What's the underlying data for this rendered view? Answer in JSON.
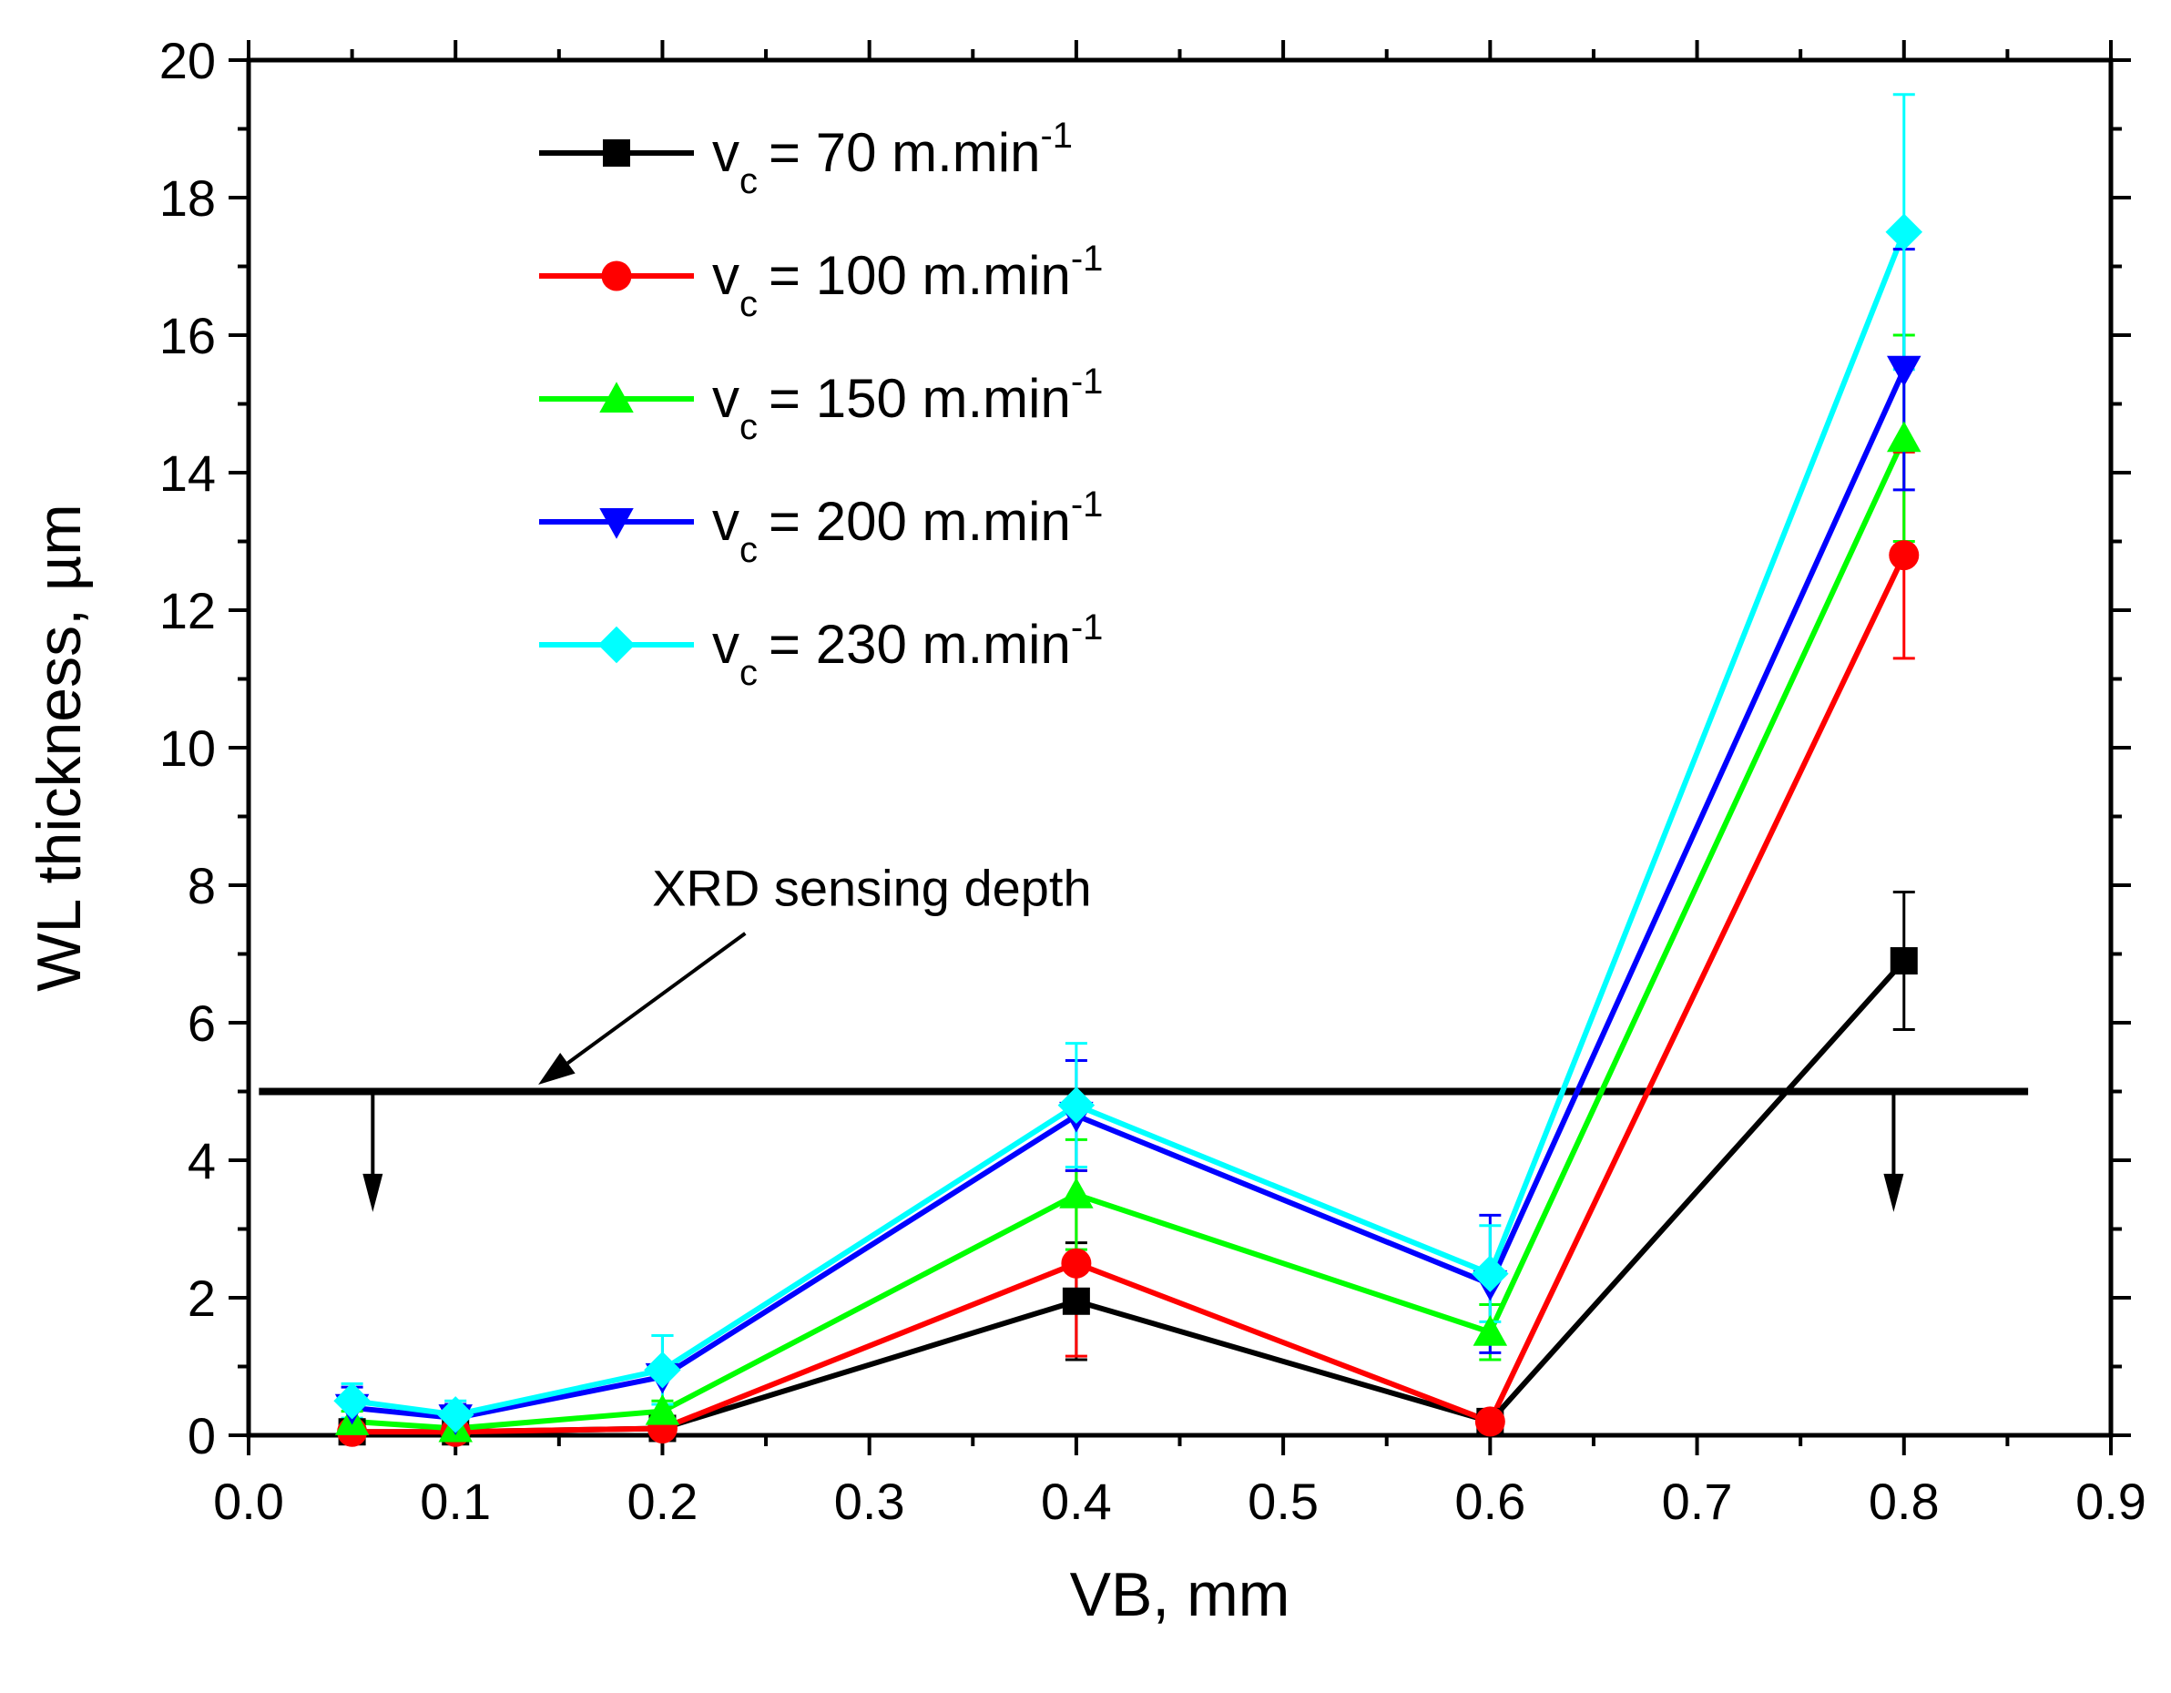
{
  "chart_data": {
    "type": "line",
    "title": "",
    "xlabel": "VB, mm",
    "ylabel": "WL thickness, µm",
    "xlim": [
      0.0,
      0.9
    ],
    "ylim": [
      0,
      20
    ],
    "x_ticks": [
      "0.0",
      "0.1",
      "0.2",
      "0.3",
      "0.4",
      "0.5",
      "0.6",
      "0.7",
      "0.8",
      "0.9"
    ],
    "y_ticks": [
      "0",
      "2",
      "4",
      "6",
      "8",
      "10",
      "12",
      "14",
      "16",
      "18",
      "20"
    ],
    "grid": false,
    "legend_position": "top-left",
    "x": [
      0.05,
      0.1,
      0.2,
      0.4,
      0.6,
      0.8
    ],
    "series": [
      {
        "name": "= 70 m.min",
        "symbol": "v",
        "subscript": "c",
        "superscript": "-1",
        "marker": "square",
        "color": "#000000",
        "values": [
          0.05,
          0.05,
          0.1,
          1.95,
          0.2,
          6.9
        ],
        "error": [
          0.05,
          0.05,
          0.05,
          0.85,
          0.05,
          1.0
        ]
      },
      {
        "name": "= 100 m.min",
        "symbol": "v",
        "subscript": "c",
        "superscript": "-1",
        "marker": "circle",
        "color": "#ff0000",
        "values": [
          0.05,
          0.05,
          0.1,
          2.5,
          0.2,
          12.8
        ],
        "error": [
          0.05,
          0.05,
          0.05,
          1.35,
          0.05,
          1.5
        ]
      },
      {
        "name": "= 150 m.min",
        "symbol": "v",
        "subscript": "c",
        "superscript": "-1",
        "marker": "triangle-up",
        "color": "#00ff00",
        "values": [
          0.2,
          0.1,
          0.35,
          3.5,
          1.5,
          14.5
        ],
        "error": [
          0.15,
          0.1,
          0.15,
          0.8,
          0.4,
          1.5
        ]
      },
      {
        "name": "= 200 m.min",
        "symbol": "v",
        "subscript": "c",
        "superscript": "-1",
        "marker": "triangle-down",
        "color": "#0000ff",
        "values": [
          0.4,
          0.25,
          0.85,
          4.65,
          2.2,
          15.5
        ],
        "error": [
          0.3,
          0.2,
          0.6,
          0.8,
          1.0,
          1.75
        ]
      },
      {
        "name": "= 230 m.min",
        "symbol": "v",
        "subscript": "c",
        "superscript": "-1",
        "marker": "diamond",
        "color": "#00ffff",
        "values": [
          0.5,
          0.3,
          0.95,
          4.8,
          2.35,
          17.5
        ],
        "error": [
          0.25,
          0.2,
          0.5,
          0.9,
          0.7,
          2.0
        ]
      }
    ],
    "reference_line": {
      "y": 5,
      "x_range": [
        0.005,
        0.86
      ],
      "color": "#000000"
    },
    "annotation": {
      "text": "XRD sensing depth",
      "arrow_from": [
        0.24,
        7.3
      ],
      "arrow_to": [
        0.14,
        5.1
      ]
    },
    "down_arrows": [
      {
        "x": 0.06,
        "y_from": 5,
        "y_to": 3.3
      },
      {
        "x": 0.795,
        "y_from": 5,
        "y_to": 3.3
      }
    ]
  }
}
